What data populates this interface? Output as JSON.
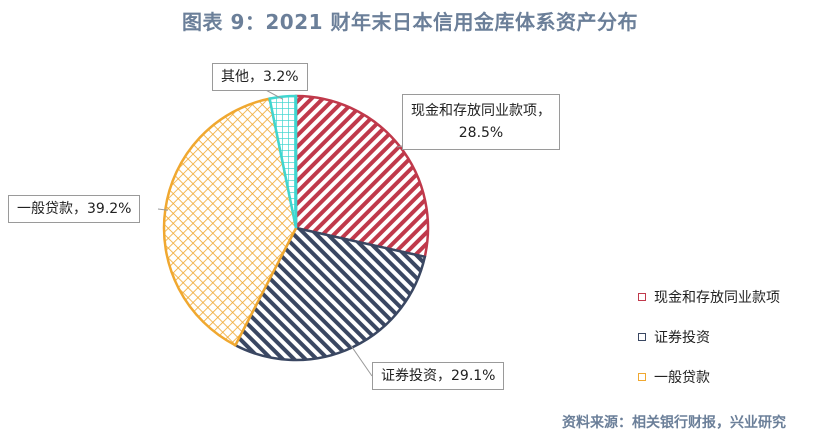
{
  "title": "图表 9：2021 财年末日本信用金库体系资产分布",
  "source": "资料来源：相关银行财报，兴业研究",
  "chart_data": {
    "type": "pie",
    "title": "图表 9：2021 财年末日本信用金库体系资产分布",
    "slices": [
      {
        "name": "现金和存放同业款项",
        "value": 28.5,
        "label": "现金和存放同业款项，28.5%",
        "color": "#c0394b",
        "pattern": "diagonal-stripes"
      },
      {
        "name": "证券投资",
        "value": 29.1,
        "label": "证券投资，29.1%",
        "color": "#3a4762",
        "pattern": "diagonal-stripes"
      },
      {
        "name": "一般贷款",
        "value": 39.2,
        "label": "一般贷款，39.2%",
        "color": "#f0a830",
        "pattern": "crosshatch"
      },
      {
        "name": "其他",
        "value": 3.2,
        "label": "其他，3.2%",
        "color": "#3fd6d0",
        "pattern": "grid"
      }
    ],
    "legend": [
      "现金和存放同业款项",
      "证券投资",
      "一般贷款"
    ],
    "legend_position": "right",
    "start_angle": "top, clockwise"
  }
}
